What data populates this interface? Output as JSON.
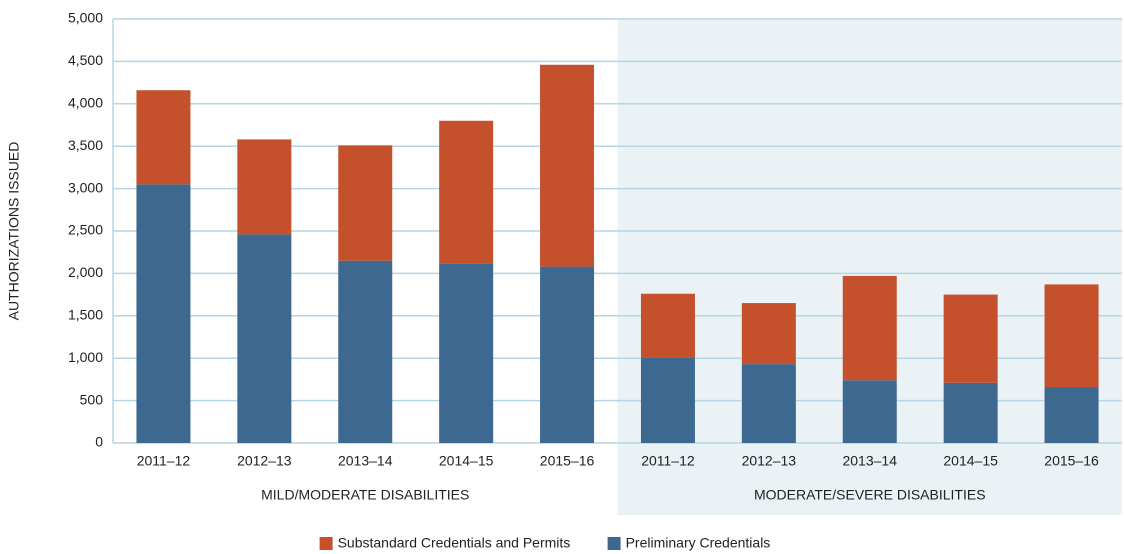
{
  "chart_data": {
    "type": "stacked_bar",
    "ylabel": "AUTHORIZATIONS ISSUED",
    "groups": [
      {
        "name": "MILD/MODERATE DISABILITIES",
        "background": "#ffffff",
        "categories": [
          "2011–12",
          "2012–13",
          "2013–14",
          "2014–15",
          "2015–16"
        ]
      },
      {
        "name": "MODERATE/SEVERE DISABILITIES",
        "background": "#eaf2f6",
        "categories": [
          "2011–12",
          "2012–13",
          "2013–14",
          "2014–15",
          "2015–16"
        ]
      }
    ],
    "series": [
      {
        "name": "Preliminary Credentials",
        "color": "#3d6990",
        "values": [
          3050,
          2460,
          2150,
          2120,
          2080,
          1010,
          930,
          740,
          710,
          660
        ]
      },
      {
        "name": "Substandard Credentials and Permits",
        "color": "#c4502c",
        "values": [
          1110,
          1120,
          1360,
          1680,
          2380,
          750,
          720,
          1230,
          1040,
          1210
        ]
      }
    ],
    "ylim": [
      0,
      5000
    ],
    "yticks": [
      0,
      500,
      {
        "value": 1000,
        "label": "1,000"
      },
      {
        "value": 1500,
        "label": "1,500"
      },
      {
        "value": 2000,
        "label": "2,000"
      },
      {
        "value": 2500,
        "label": "2,500"
      },
      {
        "value": 3000,
        "label": "3,000"
      },
      {
        "value": 3500,
        "label": "3,500"
      },
      {
        "value": 4000,
        "label": "4,000"
      },
      {
        "value": 4500,
        "label": "4,500"
      },
      {
        "value": 5000,
        "label": "5,000"
      }
    ],
    "grid": true,
    "legend": "bottom"
  }
}
